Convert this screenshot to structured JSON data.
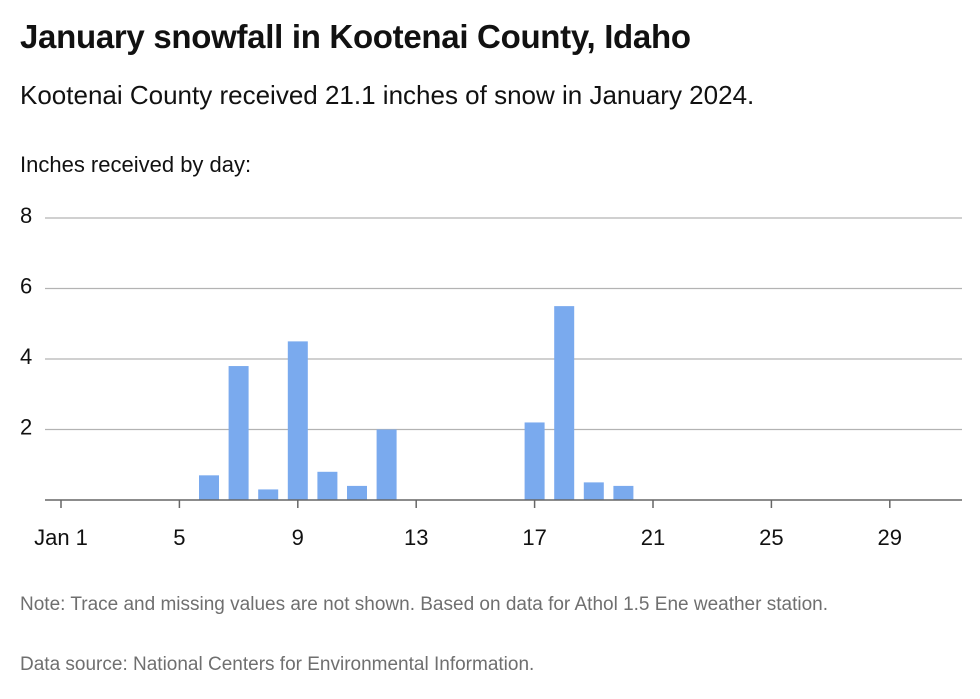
{
  "title": "January snowfall in Kootenai County, Idaho",
  "subtitle": "Kootenai County received 21.1 inches of snow in January 2024.",
  "note": "Note: Trace and missing values are not shown. Based on data for Athol 1.5 Ene weather station.",
  "source": "Data source: National Centers for Environmental Information.",
  "chart_data": {
    "type": "bar",
    "ylabel": "Inches received by day:",
    "xlabel": "",
    "x_ticks": [
      "Jan 1",
      "5",
      "9",
      "13",
      "17",
      "21",
      "25",
      "29"
    ],
    "x_tick_days": [
      1,
      5,
      9,
      13,
      17,
      21,
      25,
      29
    ],
    "y_ticks": [
      2,
      4,
      6,
      8
    ],
    "ylim": [
      0,
      8
    ],
    "xlim_days": [
      1,
      31
    ],
    "bar_color": "#7aaaee",
    "grid": true,
    "points": [
      {
        "day": 6,
        "value": 0.7
      },
      {
        "day": 7,
        "value": 3.8
      },
      {
        "day": 8,
        "value": 0.3
      },
      {
        "day": 9,
        "value": 4.5
      },
      {
        "day": 10,
        "value": 0.8
      },
      {
        "day": 11,
        "value": 0.4
      },
      {
        "day": 12,
        "value": 2.0
      },
      {
        "day": 17,
        "value": 2.2
      },
      {
        "day": 18,
        "value": 5.5
      },
      {
        "day": 19,
        "value": 0.5
      },
      {
        "day": 20,
        "value": 0.4
      }
    ]
  }
}
